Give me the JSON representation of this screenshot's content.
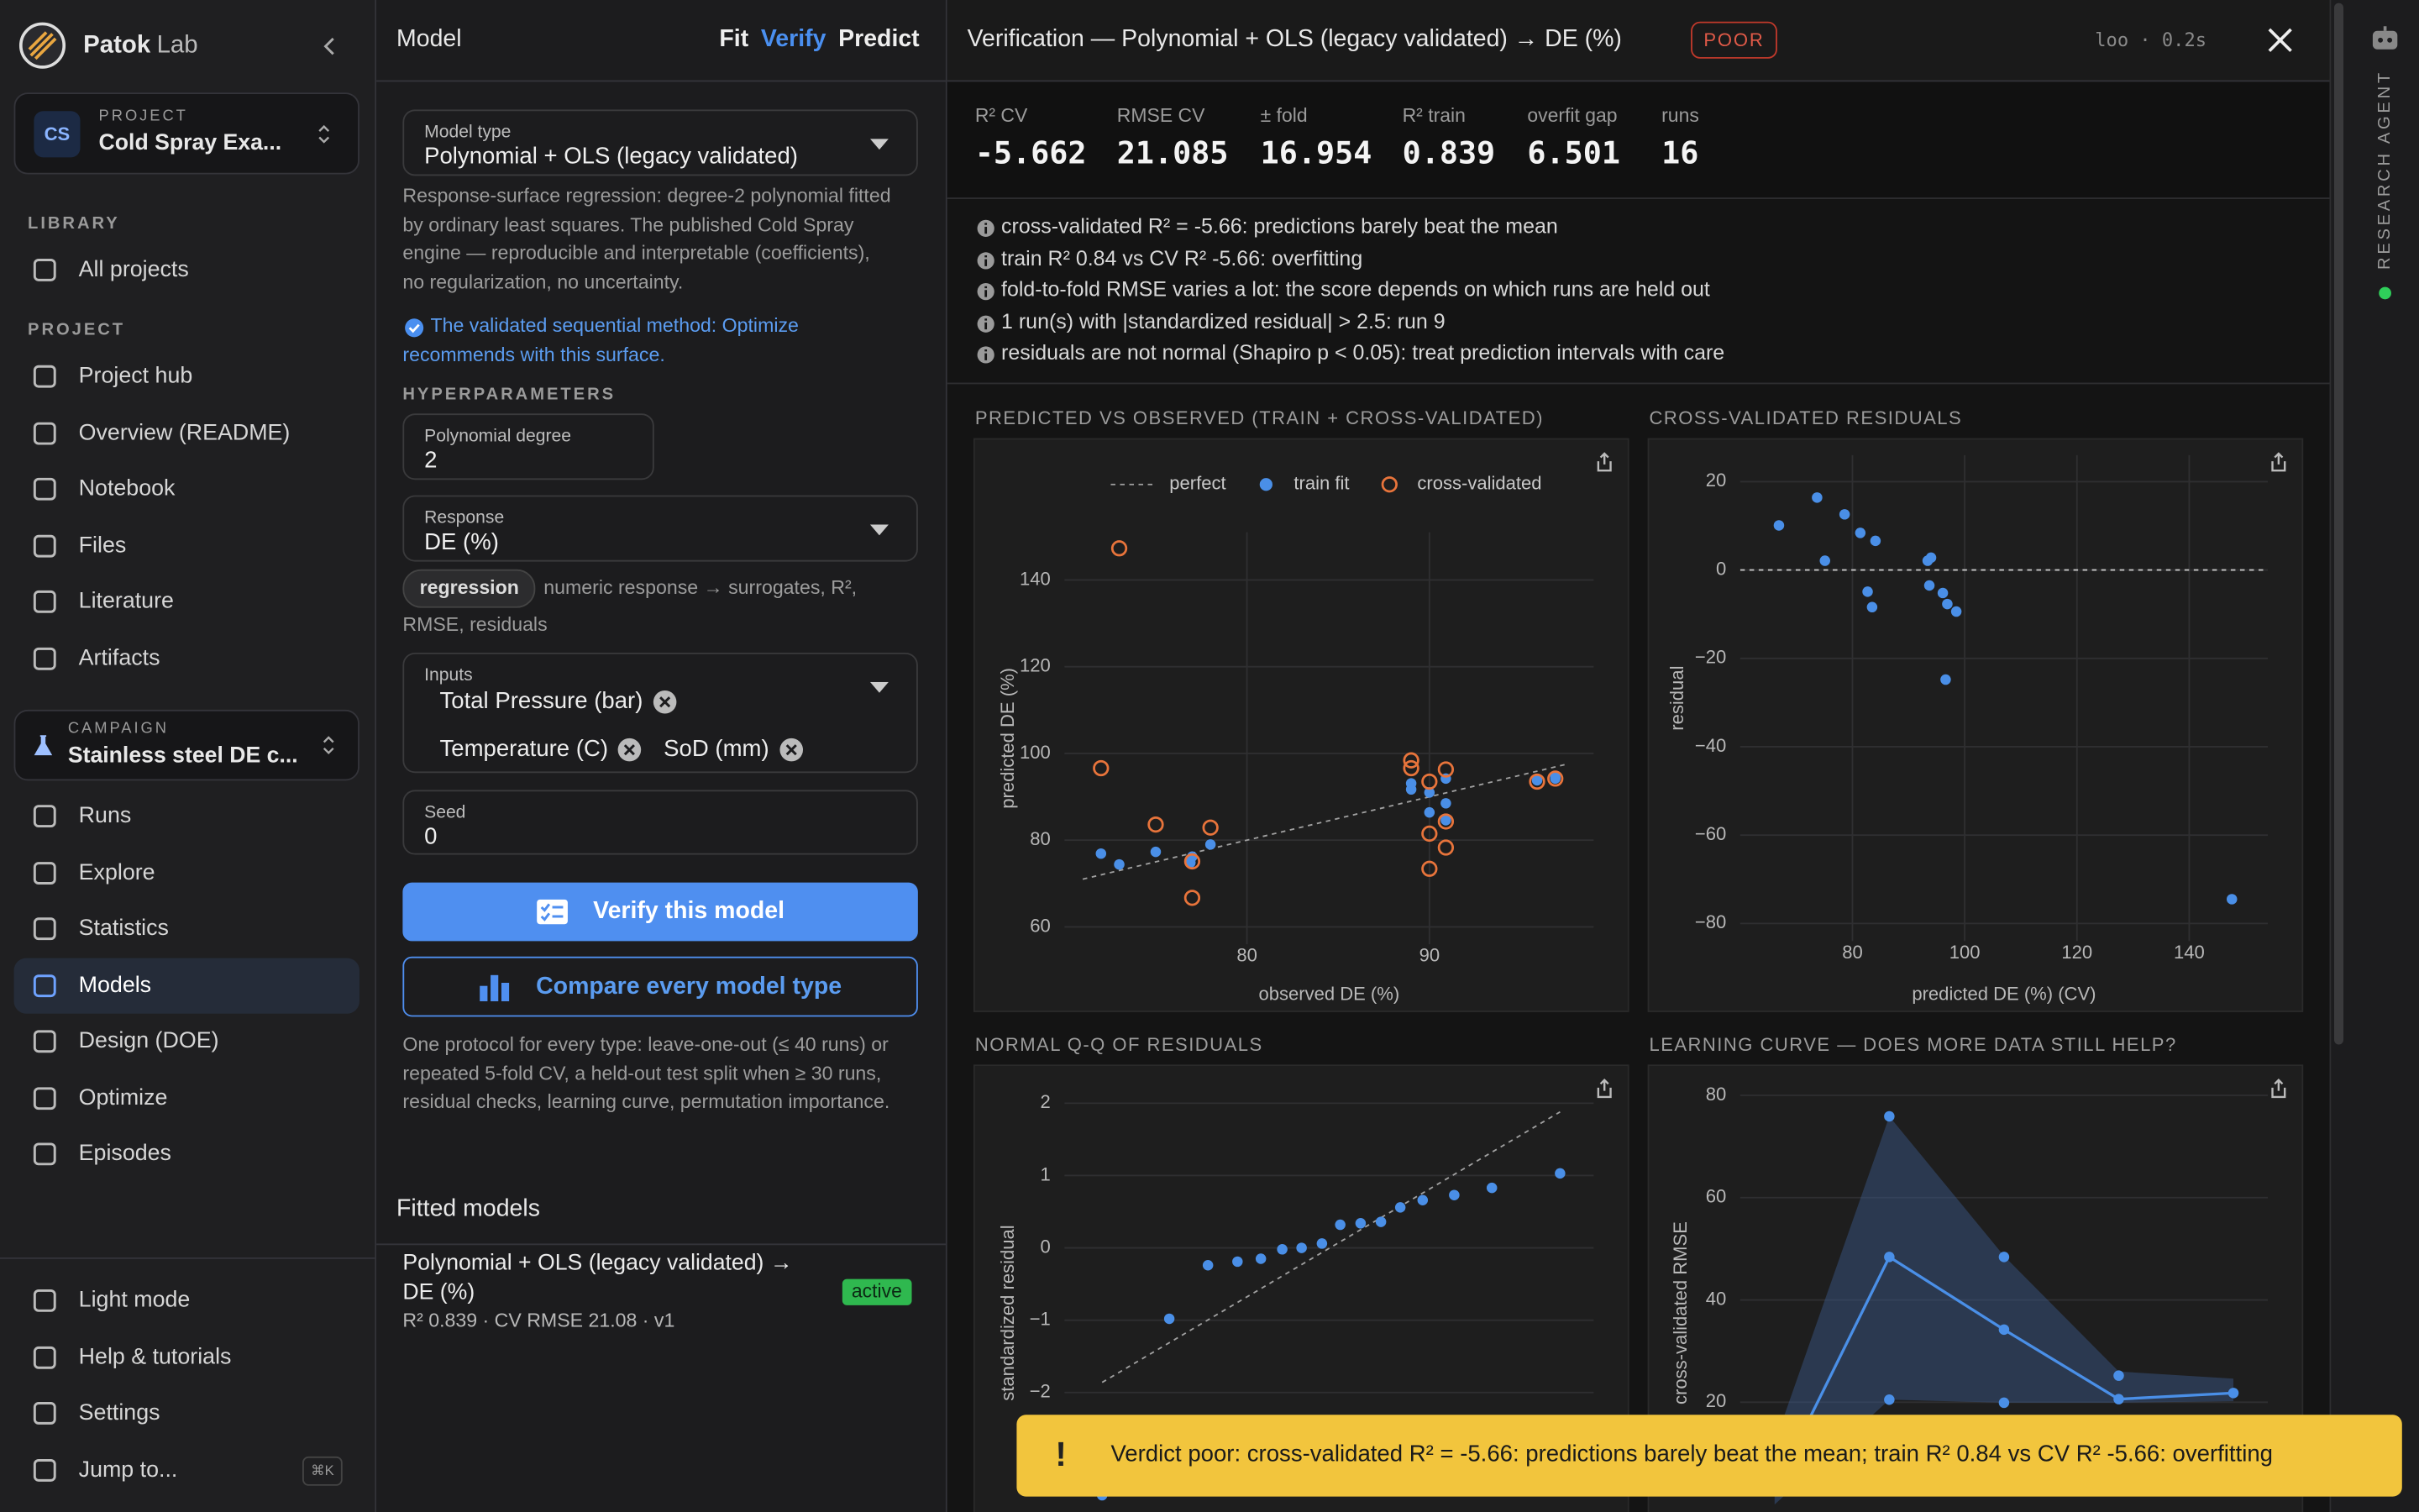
{
  "sidebar": {
    "brand": "Patok",
    "brand_suffix": "Lab",
    "project": {
      "label": "PROJECT",
      "initials": "CS",
      "name": "Cold Spray Exa..."
    },
    "library_label": "LIBRARY",
    "library_items": [
      "All projects"
    ],
    "project_label": "PROJECT",
    "project_items": [
      "Project hub",
      "Overview (README)",
      "Notebook",
      "Files",
      "Literature",
      "Artifacts"
    ],
    "campaign": {
      "label": "CAMPAIGN",
      "name": "Stainless steel DE c..."
    },
    "campaign_items": [
      "Runs",
      "Explore",
      "Statistics",
      "Models",
      "Design (DOE)",
      "Optimize",
      "Episodes"
    ],
    "active_campaign_item": 3,
    "footer_items": [
      "Light mode",
      "Help & tutorials",
      "Settings",
      "Jump to..."
    ],
    "shortcut": "⌘K"
  },
  "model_panel": {
    "title": "Model",
    "tabs": [
      "Fit",
      "Verify",
      "Predict"
    ],
    "active_tab": 1,
    "model_type": {
      "label": "Model type",
      "value": "Polynomial + OLS (legacy validated)"
    },
    "description": "Response-surface regression: degree-2 polynomial fitted by ordinary least squares. The published Cold Spray engine — reproducible and interpretable (coefficients), no regularization, no uncertainty.",
    "validated_note": "The validated sequential method: Optimize recommends with this surface.",
    "hyperparameters_label": "HYPERPARAMETERS",
    "degree": {
      "label": "Polynomial degree",
      "value": "2"
    },
    "response": {
      "label": "Response",
      "value": "DE (%)"
    },
    "response_chip": "regression",
    "response_note": "numeric response → surrogates, R², RMSE, residuals",
    "inputs": {
      "label": "Inputs",
      "items": [
        "Total Pressure (bar)",
        "Temperature (C)",
        "SoD (mm)"
      ]
    },
    "seed": {
      "label": "Seed",
      "value": "0"
    },
    "verify_button": "Verify this model",
    "compare_button": "Compare every model type",
    "protocol": "One protocol for every type: leave-one-out (≤ 40 runs) or repeated 5-fold CV, a held-out test split when ≥ 30 runs, residual checks, learning curve, permutation importance.",
    "fitted_title": "Fitted models",
    "fitted": {
      "name": "Polynomial + OLS (legacy validated) → DE (%)",
      "badge": "active",
      "summary": "R² 0.839 · CV RMSE 21.08 · v1"
    }
  },
  "verification": {
    "title": "Verification — Polynomial + OLS (legacy validated) → DE (%)",
    "badge": "POOR",
    "meta": "loo · 0.2s",
    "metrics": [
      {
        "label": "R² CV",
        "value": -5.662
      },
      {
        "label": "RMSE CV",
        "value": 21.085
      },
      {
        "label": "± fold",
        "value": 16.954
      },
      {
        "label": "R² train",
        "value": 0.839
      },
      {
        "label": "overfit gap",
        "value": 6.501
      },
      {
        "label": "runs",
        "value": 16
      }
    ],
    "notes": [
      "cross-validated R² = -5.66: predictions barely beat the mean",
      "train R² 0.84 vs CV R² -5.66: overfitting",
      "fold-to-fold RMSE varies a lot: the score depends on which runs are held out",
      "1 run(s) with |standardized residual| > 2.5: run 9",
      "residuals are not normal (Shapiro p < 0.05): treat prediction intervals with care"
    ]
  },
  "chart_data": [
    {
      "type": "scatter",
      "title": "PREDICTED VS OBSERVED (TRAIN + CROSS-VALIDATED)",
      "x_label": "observed DE (%)",
      "y_label": "predicted DE (%)",
      "xlim": [
        70,
        99
      ],
      "ylim": [
        56,
        151
      ],
      "xticks": [
        80,
        90
      ],
      "yticks": [
        60,
        80,
        100,
        120,
        140
      ],
      "grid": true,
      "legend": "top",
      "series": [
        {
          "name": "perfect",
          "color": "#a0a0a0",
          "marker": "dashed-line",
          "x": [
            71,
            97.5
          ],
          "values": [
            71,
            97.5
          ]
        },
        {
          "name": "train fit",
          "color": "#4a8fe7",
          "marker": "dot",
          "x": [
            72,
            73,
            75,
            77,
            78,
            89,
            89,
            90,
            90,
            90.9,
            90.9,
            90.9,
            95.9,
            96.9,
            76.9,
            96.9
          ],
          "values": [
            76.9,
            74.4,
            77.3,
            76.2,
            79,
            93.1,
            91.7,
            91,
            86.4,
            88.5,
            84.6,
            94.2,
            93.8,
            94.2,
            74.8,
            94.5
          ]
        },
        {
          "name": "cross-validated",
          "color": "#e8743b",
          "marker": "ring",
          "x": [
            73,
            72,
            75,
            77,
            77,
            78,
            89,
            89,
            90,
            90,
            90,
            90.9,
            90.9,
            90.9,
            95.9,
            96.9
          ],
          "values": [
            147.3,
            96.6,
            83.6,
            75.1,
            66.7,
            82.9,
            98.4,
            96.6,
            93.5,
            81.5,
            73.4,
            96.3,
            84.3,
            78.3,
            93.5,
            94.2
          ]
        }
      ]
    },
    {
      "type": "scatter",
      "title": "CROSS-VALIDATED RESIDUALS",
      "x_label": "predicted DE (%) (CV)",
      "y_label": "residual",
      "xlim": [
        60,
        154
      ],
      "ylim": [
        -84,
        26
      ],
      "xticks": [
        80,
        100,
        120,
        140
      ],
      "yticks": [
        20,
        0,
        {
          "value": -20,
          "label": "−20"
        },
        {
          "value": -40,
          "label": "−40"
        },
        {
          "value": -60,
          "label": "−60"
        },
        {
          "value": -80,
          "label": "−80"
        }
      ],
      "grid": true,
      "reference_y": 0,
      "series": [
        {
          "color": "#4a8fe7",
          "marker": "dot",
          "x": [
            66.9,
            73.7,
            75.1,
            78.6,
            81.4,
            84.1,
            82.7,
            83.5,
            93.4,
            94,
            93.7,
            96.1,
            96.9,
            98.5,
            96.6,
            147.6
          ],
          "values": [
            10.1,
            16.4,
            2.1,
            12.6,
            8.4,
            6.6,
            -4.9,
            -8.4,
            2.1,
            2.8,
            -3.5,
            -5.2,
            -7.7,
            -9.4,
            -24.8,
            -74.5
          ]
        }
      ]
    },
    {
      "type": "scatter",
      "title": "NORMAL Q-Q OF RESIDUALS",
      "y_label": "standardized residual",
      "xlim": [
        -2.6,
        2.6
      ],
      "ylim": [
        -4.1,
        2.3
      ],
      "yticks": [
        2,
        1,
        0,
        {
          "value": -1,
          "label": "−1"
        },
        {
          "value": -2,
          "label": "−2"
        }
      ],
      "grid": true,
      "series": [
        {
          "color": "#a0a0a0",
          "marker": "dashed-line",
          "x": [
            -2.23,
            2.27
          ],
          "values": [
            -1.86,
            1.88
          ]
        },
        {
          "color": "#4a8fe7",
          "marker": "dot",
          "x": [
            -2.23,
            -1.57,
            -1.19,
            -0.9,
            -0.67,
            -0.46,
            -0.27,
            -0.07,
            0.11,
            0.31,
            0.51,
            0.7,
            0.92,
            1.23,
            1.6,
            2.27
          ],
          "values": [
            -3.42,
            -0.98,
            -0.24,
            -0.19,
            -0.15,
            -0.02,
            0,
            0.06,
            0.32,
            0.34,
            0.36,
            0.56,
            0.66,
            0.73,
            0.83,
            1.03
          ]
        }
      ]
    },
    {
      "type": "line",
      "title": "LEARNING CURVE — DOES MORE DATA STILL HELP?",
      "y_label": "cross-validated RMSE",
      "xlim": [
        3.4,
        12.6
      ],
      "ylim": [
        -7.8,
        82.7
      ],
      "yticks": [
        20,
        40,
        60,
        80
      ],
      "grid": true,
      "x": [
        4,
        6,
        8,
        10,
        12
      ],
      "band": {
        "color": "#3b5b8f",
        "lower": [
          0,
          20.5,
          19.9,
          19.9,
          20.2
        ],
        "upper": [
          12,
          75.9,
          48.6,
          26,
          24.6
        ]
      },
      "series": [
        {
          "color": "#4a8fe7",
          "marker": "line-dot",
          "values": [
            3,
            48.4,
            34.2,
            20.6,
            21.8
          ]
        },
        {
          "color": "#4a8fe7",
          "marker": "dot",
          "x": [
            6,
            6,
            8,
            8,
            10
          ],
          "values": [
            75.9,
            20.5,
            48.4,
            19.9,
            25.2
          ]
        }
      ]
    }
  ],
  "toast": {
    "icon": "!",
    "text": "Verdict poor: cross-validated R² = -5.66: predictions barely beat the mean; train R² 0.84 vs CV R² -5.66: overfitting"
  },
  "agent_rail": {
    "label": "RESEARCH AGENT"
  }
}
